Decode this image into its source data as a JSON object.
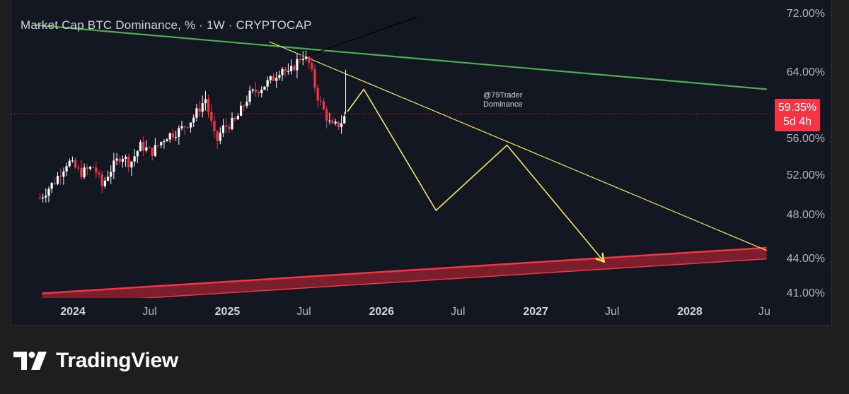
{
  "header": {
    "title": "Market Cap BTC Dominance, % · 1W · CRYPTOCAP"
  },
  "price_badge": {
    "value": "59.35%",
    "countdown": "5d 4h",
    "color": "#f23645"
  },
  "annotation": {
    "line1": "@79Trader",
    "line2": "Dominance"
  },
  "brand": {
    "name": "TradingView",
    "icon": "tradingview-logo-icon"
  },
  "colors": {
    "background": "#131722",
    "up_candle": "#ffffff",
    "down_candle": "#f23645",
    "resistance_line": "#4caf50",
    "projection": "#f5e663",
    "support_band": "#f23645"
  },
  "chart_data": {
    "type": "candlestick",
    "title": "Market Cap BTC Dominance, % · 1W · CRYPTOCAP",
    "y_unit": "%",
    "y_range": [
      41,
      72
    ],
    "y_ticks": [
      "72.00%",
      "64.00%",
      "56.00%",
      "52.00%",
      "48.00%",
      "44.00%",
      "41.00%"
    ],
    "x_ticks": [
      {
        "label": "2024",
        "date": "2024-01-01",
        "bold": true
      },
      {
        "label": "Jul",
        "date": "2024-07-01",
        "bold": false
      },
      {
        "label": "2025",
        "date": "2025-01-01",
        "bold": true
      },
      {
        "label": "Jul",
        "date": "2025-07-01",
        "bold": false
      },
      {
        "label": "2026",
        "date": "2026-01-01",
        "bold": true
      },
      {
        "label": "Jul",
        "date": "2026-07-01",
        "bold": false
      },
      {
        "label": "2027",
        "date": "2027-01-01",
        "bold": true
      },
      {
        "label": "Jul",
        "date": "2027-07-01",
        "bold": false
      },
      {
        "label": "2028",
        "date": "2028-01-01",
        "bold": true
      },
      {
        "label": "Ju",
        "date": "2028-07-01",
        "bold": false
      }
    ],
    "last_price": 59.35,
    "close_path": [
      {
        "date": "2023-10-15",
        "close": 50.3
      },
      {
        "date": "2023-11-20",
        "close": 52.2
      },
      {
        "date": "2023-12-20",
        "close": 54.3
      },
      {
        "date": "2024-01-20",
        "close": 53.0
      },
      {
        "date": "2024-02-20",
        "close": 53.7
      },
      {
        "date": "2024-03-10",
        "close": 51.6
      },
      {
        "date": "2024-03-25",
        "close": 53.0
      },
      {
        "date": "2024-04-25",
        "close": 55.0
      },
      {
        "date": "2024-05-15",
        "close": 54.0
      },
      {
        "date": "2024-06-10",
        "close": 56.0
      },
      {
        "date": "2024-07-05",
        "close": 55.2
      },
      {
        "date": "2024-08-10",
        "close": 57.0
      },
      {
        "date": "2024-09-10",
        "close": 57.6
      },
      {
        "date": "2024-10-10",
        "close": 58.8
      },
      {
        "date": "2024-11-10",
        "close": 61.0
      },
      {
        "date": "2024-12-05",
        "close": 56.2
      },
      {
        "date": "2024-12-20",
        "close": 57.8
      },
      {
        "date": "2025-01-20",
        "close": 58.6
      },
      {
        "date": "2025-02-20",
        "close": 61.3
      },
      {
        "date": "2025-03-25",
        "close": 62.3
      },
      {
        "date": "2025-04-20",
        "close": 63.2
      },
      {
        "date": "2025-05-10",
        "close": 64.4
      },
      {
        "date": "2025-05-25",
        "close": 63.5
      },
      {
        "date": "2025-06-15",
        "close": 65.0
      },
      {
        "date": "2025-06-28",
        "close": 65.7
      },
      {
        "date": "2025-07-15",
        "close": 64.6
      },
      {
        "date": "2025-08-01",
        "close": 61.4
      },
      {
        "date": "2025-08-20",
        "close": 59.4
      },
      {
        "date": "2025-09-05",
        "close": 57.9
      },
      {
        "date": "2025-09-25",
        "close": 58.3
      },
      {
        "date": "2025-10-10",
        "close": 59.35
      }
    ],
    "overlays": {
      "resistance_line": {
        "color": "#4caf50",
        "points": [
          {
            "date": "2023-10-01",
            "value": 68.9
          },
          {
            "date": "2028-07-01",
            "value": 62.0
          }
        ]
      },
      "descending_trendline": {
        "color": "#f5e663",
        "points": [
          {
            "date": "2025-04-10",
            "value": 67.1
          },
          {
            "date": "2028-07-01",
            "value": 44.7
          }
        ]
      },
      "projection_path": {
        "color": "#f5e663",
        "points": [
          {
            "date": "2025-10-12",
            "value": 59.6
          },
          {
            "date": "2025-11-20",
            "value": 62.0
          },
          {
            "date": "2026-05-10",
            "value": 49.0
          },
          {
            "date": "2026-10-25",
            "value": 56.0
          },
          {
            "date": "2027-06-10",
            "value": 43.6
          }
        ]
      },
      "support_band": {
        "color": "#f23645",
        "upper": [
          {
            "date": "2023-10-20",
            "value": 40.1
          },
          {
            "date": "2028-07-01",
            "value": 45.0
          }
        ],
        "lower": [
          {
            "date": "2023-10-20",
            "value": 38.9
          },
          {
            "date": "2028-07-01",
            "value": 43.8
          }
        ]
      }
    }
  }
}
